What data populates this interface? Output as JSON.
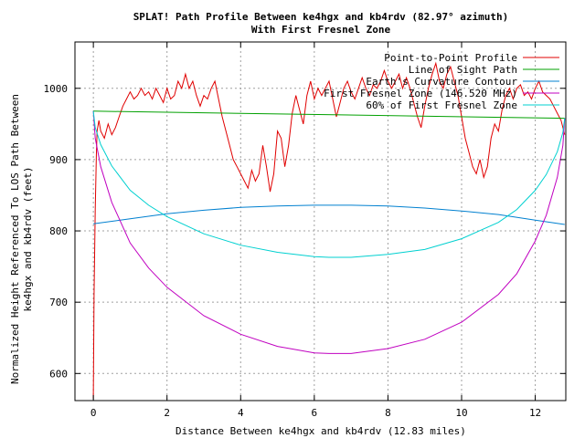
{
  "chart_data": {
    "type": "line",
    "title": "SPLAT! Path Profile Between ke4hgx and kb4rdv (82.97° azimuth)",
    "subtitle": "With First Fresnel Zone",
    "xlabel": "Distance Between ke4hgx and kb4rdv (12.83 miles)",
    "ylabel_line1": "Normalized Height Referenced To LOS Path Between",
    "ylabel_line2": "ke4hgx and kb4rdv (feet)",
    "xlim": [
      -0.5,
      12.83
    ],
    "ylim": [
      562,
      1065
    ],
    "xticks": [
      0,
      2,
      4,
      6,
      8,
      10,
      12
    ],
    "xtick_labels": [
      "0",
      "2",
      "4",
      "6",
      "8",
      "10",
      "12"
    ],
    "yticks": [
      600,
      700,
      800,
      900,
      1000
    ],
    "ytick_labels": [
      "600",
      "700",
      "800",
      "900",
      "1000"
    ],
    "grid": true,
    "legend_position": "top-right",
    "series": [
      {
        "name": "Point-to-Point Profile",
        "color": "#e00000",
        "x": [
          0.0,
          0.02,
          0.05,
          0.08,
          0.1,
          0.15,
          0.2,
          0.3,
          0.4,
          0.5,
          0.6,
          0.7,
          0.8,
          0.9,
          1.0,
          1.1,
          1.2,
          1.3,
          1.4,
          1.5,
          1.6,
          1.7,
          1.8,
          1.9,
          2.0,
          2.1,
          2.2,
          2.3,
          2.4,
          2.5,
          2.6,
          2.7,
          2.8,
          2.9,
          3.0,
          3.1,
          3.2,
          3.3,
          3.4,
          3.5,
          3.6,
          3.7,
          3.8,
          3.9,
          4.0,
          4.1,
          4.2,
          4.3,
          4.4,
          4.5,
          4.6,
          4.7,
          4.8,
          4.9,
          5.0,
          5.1,
          5.2,
          5.3,
          5.4,
          5.5,
          5.6,
          5.7,
          5.8,
          5.9,
          6.0,
          6.1,
          6.2,
          6.3,
          6.4,
          6.5,
          6.6,
          6.7,
          6.8,
          6.9,
          7.0,
          7.1,
          7.2,
          7.3,
          7.4,
          7.5,
          7.6,
          7.7,
          7.8,
          7.9,
          8.0,
          8.1,
          8.2,
          8.3,
          8.4,
          8.5,
          8.6,
          8.7,
          8.8,
          8.9,
          9.0,
          9.1,
          9.2,
          9.3,
          9.4,
          9.5,
          9.6,
          9.7,
          9.8,
          9.9,
          10.0,
          10.1,
          10.2,
          10.3,
          10.4,
          10.5,
          10.6,
          10.7,
          10.8,
          10.9,
          11.0,
          11.1,
          11.2,
          11.3,
          11.4,
          11.5,
          11.6,
          11.7,
          11.8,
          11.9,
          12.0,
          12.1,
          12.2,
          12.3,
          12.4,
          12.5,
          12.6,
          12.7,
          12.8
        ],
        "y": [
          565,
          710,
          830,
          905,
          940,
          955,
          940,
          930,
          950,
          935,
          945,
          960,
          975,
          985,
          995,
          985,
          990,
          1000,
          990,
          995,
          985,
          1000,
          990,
          980,
          1000,
          985,
          990,
          1010,
          1000,
          1020,
          1000,
          1010,
          990,
          975,
          990,
          985,
          1000,
          1010,
          985,
          960,
          940,
          920,
          900,
          890,
          880,
          870,
          860,
          885,
          870,
          880,
          920,
          890,
          855,
          880,
          940,
          930,
          890,
          920,
          965,
          990,
          970,
          950,
          990,
          1010,
          985,
          1000,
          990,
          1000,
          1010,
          985,
          960,
          980,
          1000,
          1010,
          995,
          985,
          1000,
          1015,
          1000,
          990,
          1005,
          1000,
          1010,
          1025,
          1010,
          1000,
          1010,
          1020,
          1000,
          1015,
          1000,
          980,
          960,
          945,
          975,
          1000,
          1020,
          1035,
          1010,
          1000,
          1020,
          1030,
          1010,
          990,
          960,
          930,
          910,
          890,
          880,
          900,
          875,
          890,
          930,
          950,
          940,
          970,
          990,
          1000,
          985,
          1000,
          1005,
          990,
          995,
          985,
          1000,
          1010,
          995,
          990,
          985,
          975,
          965,
          955,
          935
        ]
      },
      {
        "name": "Line of Sight Path",
        "color": "#00a000",
        "x": [
          0,
          12.8
        ],
        "y": [
          968,
          958
        ]
      },
      {
        "name": "Earth's Curvature Contour",
        "color": "#0080d0",
        "x": [
          0,
          1,
          2,
          3,
          4,
          5,
          6,
          6.4,
          7,
          8,
          9,
          10,
          11,
          12,
          12.8
        ],
        "y": [
          810,
          817,
          824,
          829,
          833,
          835,
          836,
          836,
          836,
          835,
          832,
          828,
          823,
          815,
          809
        ]
      },
      {
        "name": "First Fresnel Zone (146.520 MHz)",
        "color": "#c000c0",
        "x": [
          0,
          0.05,
          0.2,
          0.5,
          1,
          1.5,
          2,
          3,
          4,
          5,
          6,
          6.4,
          7,
          8,
          9,
          10,
          11,
          11.5,
          12,
          12.3,
          12.6,
          12.75,
          12.8
        ],
        "y": [
          968,
          930,
          890,
          840,
          783,
          748,
          721,
          681,
          655,
          638,
          629,
          628,
          628,
          635,
          648,
          672,
          711,
          740,
          786,
          822,
          875,
          920,
          958
        ]
      },
      {
        "name": "60% of First Fresnel Zone",
        "color": "#00d0d0",
        "x": [
          0,
          0.05,
          0.2,
          0.5,
          1,
          1.5,
          2,
          3,
          4,
          5,
          6,
          6.4,
          7,
          8,
          9,
          10,
          11,
          11.5,
          12,
          12.3,
          12.6,
          12.75,
          12.8
        ],
        "y": [
          968,
          945,
          921,
          891,
          857,
          836,
          820,
          796,
          780,
          770,
          764,
          763,
          763,
          767,
          774,
          789,
          812,
          830,
          857,
          879,
          911,
          938,
          958
        ]
      }
    ]
  }
}
